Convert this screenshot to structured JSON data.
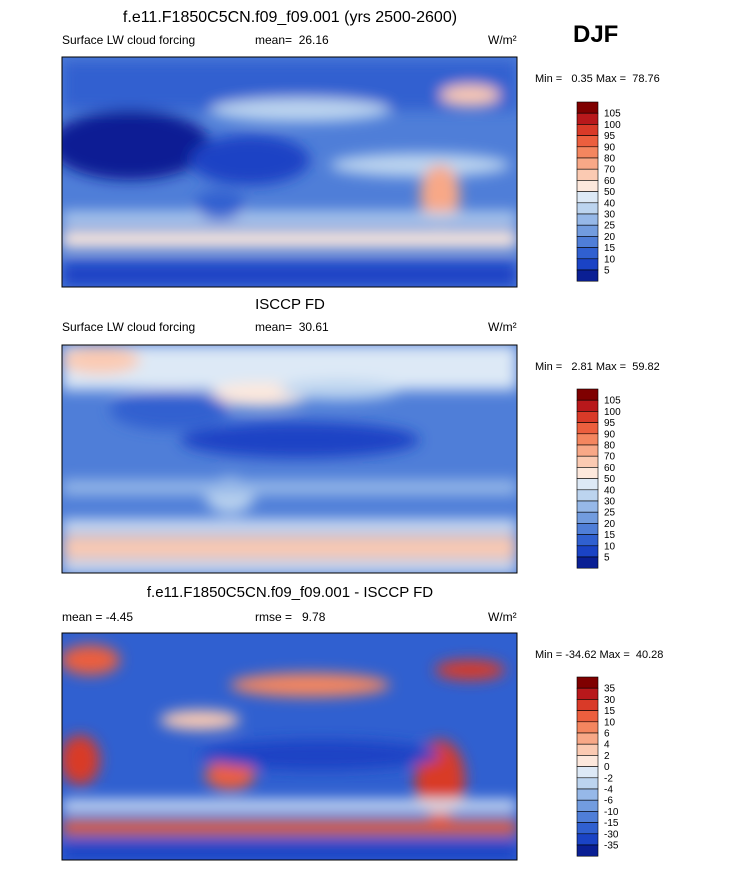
{
  "header": {
    "title": "f.e11.F1850C5CN.f09_f09.001 (yrs 2500-2600)",
    "season": "DJF"
  },
  "panels": [
    {
      "title": null,
      "left": "Surface LW cloud forcing",
      "center": "mean=  26.16",
      "right": "W/m²",
      "minmax": "Min =   0.35 Max =  78.76",
      "levels": [
        "105",
        "100",
        "95",
        "90",
        "80",
        "70",
        "60",
        "50",
        "40",
        "30",
        "25",
        "20",
        "15",
        "10",
        "5"
      ],
      "colors": [
        "#7f0000",
        "#b8181b",
        "#d93a28",
        "#ec5f3e",
        "#f4865f",
        "#f8a887",
        "#fbcab2",
        "#fde8dc",
        "#dde9f6",
        "#bcd4ef",
        "#96b8e8",
        "#729cdf",
        "#4f7ed8",
        "#3060d0",
        "#1a43c5",
        "#0a1f94"
      ]
    },
    {
      "title": "ISCCP FD",
      "left": "Surface LW cloud forcing",
      "center": "mean=  30.61",
      "right": "W/m²",
      "minmax": "Min =   2.81 Max =  59.82",
      "levels": [
        "105",
        "100",
        "95",
        "90",
        "80",
        "70",
        "60",
        "50",
        "40",
        "30",
        "25",
        "20",
        "15",
        "10",
        "5"
      ],
      "colors": [
        "#7f0000",
        "#b8181b",
        "#d93a28",
        "#ec5f3e",
        "#f4865f",
        "#f8a887",
        "#fbcab2",
        "#fde8dc",
        "#dde9f6",
        "#bcd4ef",
        "#96b8e8",
        "#729cdf",
        "#4f7ed8",
        "#3060d0",
        "#1a43c5",
        "#0a1f94"
      ]
    },
    {
      "title": "f.e11.F1850C5CN.f09_f09.001 - ISCCP FD",
      "left": "mean =  -4.45",
      "center": "rmse =   9.78",
      "right": "W/m²",
      "minmax": "Min = -34.62 Max =  40.28",
      "levels": [
        "35",
        "30",
        "15",
        "10",
        "6",
        "4",
        "2",
        "0",
        "-2",
        "-4",
        "-6",
        "-10",
        "-15",
        "-30",
        "-35"
      ],
      "colors": [
        "#7f0000",
        "#b8181b",
        "#d93a28",
        "#ec5f3e",
        "#f4865f",
        "#f8a887",
        "#fbcab2",
        "#fde8dc",
        "#dde9f6",
        "#bcd4ef",
        "#96b8e8",
        "#729cdf",
        "#4f7ed8",
        "#3060d0",
        "#1a43c5",
        "#0a1f94"
      ]
    }
  ]
}
